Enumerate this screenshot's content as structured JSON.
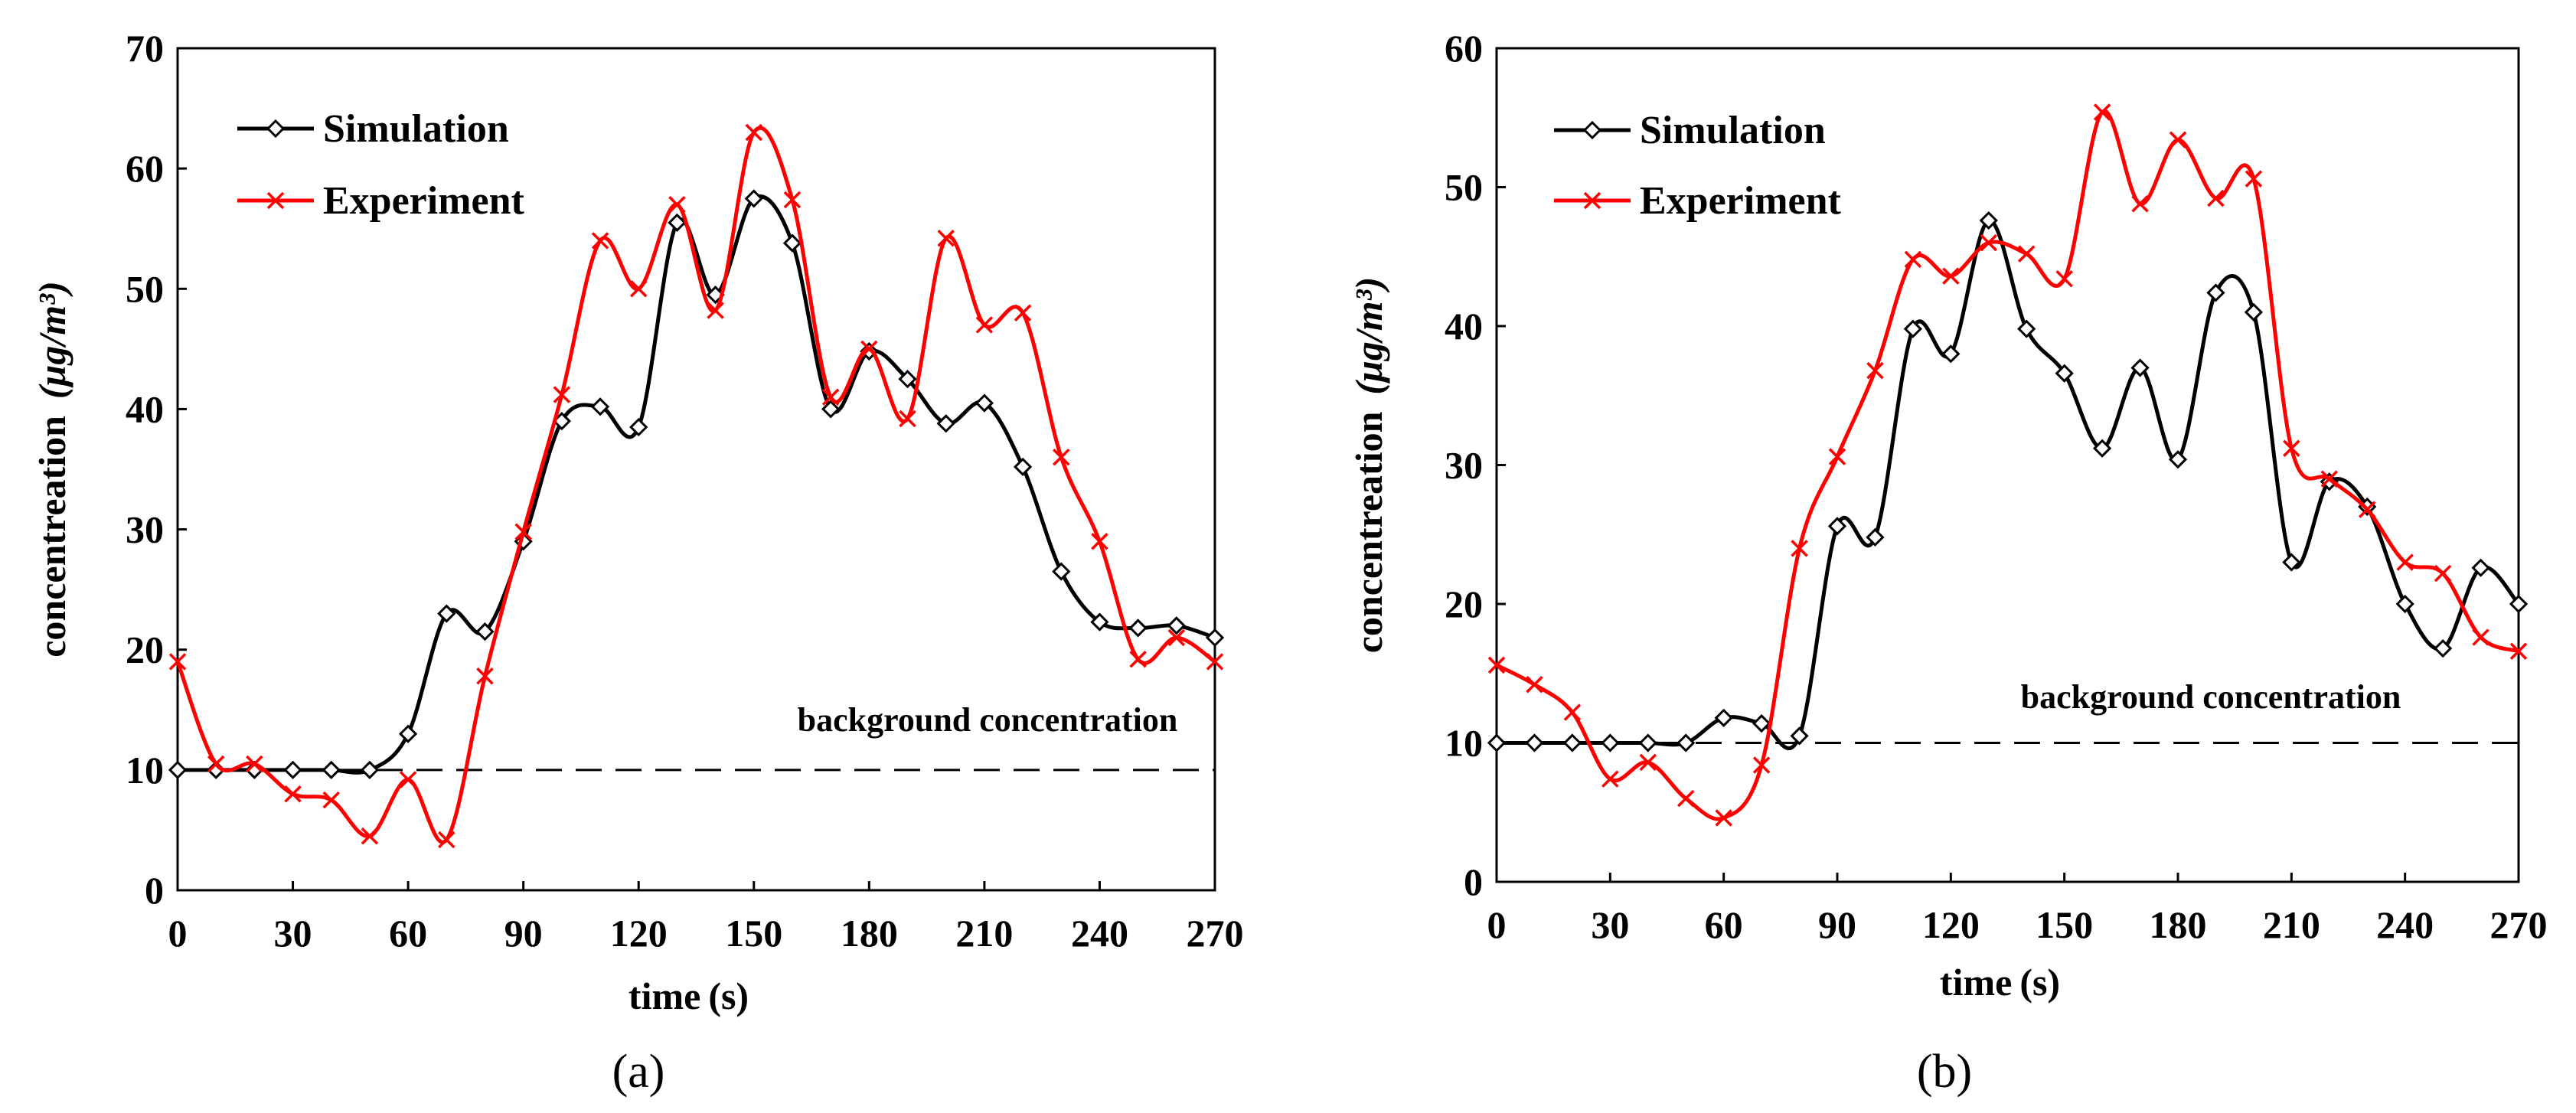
{
  "chart_data": [
    {
      "type": "line",
      "panel_label": "(a)",
      "xlabel": "time (s)",
      "ylabel_main": "concentreation",
      "ylabel_unit": "(μg/m³)",
      "xlim": [
        0,
        270
      ],
      "ylim": [
        0,
        70
      ],
      "xticks": [
        "0",
        "30",
        "60",
        "90",
        "120",
        "150",
        "180",
        "210",
        "240",
        "270"
      ],
      "yticks": [
        "0",
        "10",
        "20",
        "30",
        "40",
        "50",
        "60",
        "70"
      ],
      "legend_placement": "top-left",
      "grid": false,
      "annotation": "background concentration",
      "background_level": 10,
      "series": [
        {
          "name": "Simulation",
          "color": "#000000",
          "marker": "diamond",
          "x": [
            0,
            10,
            20,
            30,
            40,
            50,
            60,
            70,
            80,
            90,
            100,
            110,
            120,
            130,
            140,
            150,
            160,
            170,
            180,
            190,
            200,
            210,
            220,
            230,
            240,
            250,
            260,
            270
          ],
          "values": [
            10,
            10,
            10,
            10,
            10,
            10,
            13,
            23,
            21.5,
            29,
            39,
            40.2,
            38.5,
            55.5,
            49.5,
            57.5,
            53.8,
            40,
            44.8,
            42.5,
            38.8,
            40.5,
            35.2,
            26.5,
            22.3,
            21.8,
            22,
            21
          ]
        },
        {
          "name": "Experiment",
          "color": "#ff0000",
          "marker": "cross",
          "x": [
            0,
            10,
            20,
            30,
            40,
            50,
            60,
            70,
            80,
            90,
            100,
            110,
            120,
            130,
            140,
            150,
            160,
            170,
            180,
            190,
            200,
            210,
            220,
            230,
            240,
            250,
            260,
            270
          ],
          "values": [
            19,
            10.5,
            10.5,
            8,
            7.5,
            4.5,
            9.2,
            4.2,
            17.8,
            29.8,
            41.2,
            54,
            50,
            57,
            48.2,
            63,
            57.4,
            41,
            45,
            39.2,
            54.2,
            47,
            48,
            36,
            29,
            19.2,
            21,
            19
          ]
        }
      ]
    },
    {
      "type": "line",
      "panel_label": "(b)",
      "xlabel": "time (s)",
      "ylabel_main": "concentreation",
      "ylabel_unit": "(μg/m³)",
      "xlim": [
        0,
        270
      ],
      "ylim": [
        0,
        60
      ],
      "xticks": [
        "0",
        "30",
        "60",
        "90",
        "120",
        "150",
        "180",
        "210",
        "240",
        "270"
      ],
      "yticks": [
        "0",
        "10",
        "20",
        "30",
        "40",
        "50",
        "60"
      ],
      "legend_placement": "top-left",
      "grid": false,
      "annotation": "background concentration",
      "background_level": 10,
      "series": [
        {
          "name": "Simulation",
          "color": "#000000",
          "marker": "diamond",
          "x": [
            0,
            10,
            20,
            30,
            40,
            50,
            60,
            70,
            80,
            90,
            100,
            110,
            120,
            130,
            140,
            150,
            160,
            170,
            180,
            190,
            200,
            210,
            220,
            230,
            240,
            250,
            260,
            270
          ],
          "values": [
            10,
            10,
            10,
            10,
            10,
            10,
            11.8,
            11.4,
            10.5,
            25.6,
            24.8,
            39.8,
            38,
            47.6,
            39.8,
            36.6,
            31.2,
            37,
            30.4,
            42.4,
            41,
            23,
            28.8,
            27,
            20,
            16.8,
            22.6,
            20
          ]
        },
        {
          "name": "Experiment",
          "color": "#ff0000",
          "marker": "cross",
          "x": [
            0,
            10,
            20,
            30,
            40,
            50,
            60,
            70,
            80,
            90,
            100,
            110,
            120,
            130,
            140,
            150,
            160,
            170,
            180,
            190,
            200,
            210,
            220,
            230,
            240,
            250,
            260,
            270
          ],
          "values": [
            15.6,
            14.2,
            12.2,
            7.4,
            8.6,
            6,
            4.6,
            8.4,
            24,
            30.6,
            36.8,
            44.8,
            43.6,
            46,
            45.2,
            43.4,
            55.4,
            48.8,
            53.4,
            49.2,
            50.6,
            31.2,
            29,
            26.8,
            23,
            22.2,
            17.6,
            16.6
          ]
        }
      ]
    }
  ]
}
